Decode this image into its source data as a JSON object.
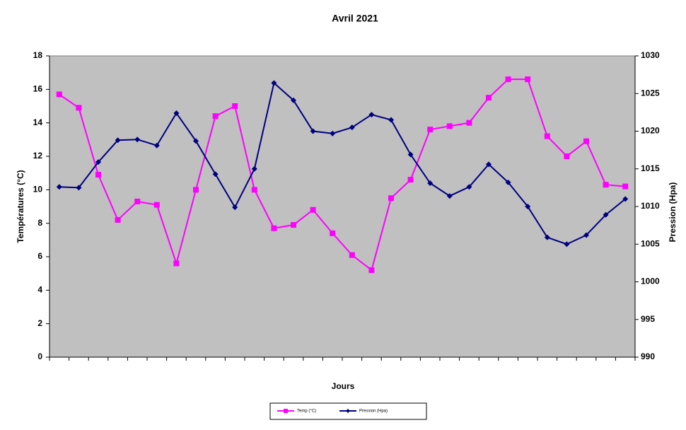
{
  "chart_data": {
    "type": "line",
    "title": "Avril 2021",
    "xlabel": "Jours",
    "ylabel": "Températures (°C)",
    "y2label": "Pression (Hpa)",
    "categories": [
      null,
      null,
      null,
      null,
      null,
      null,
      null,
      null,
      null,
      null,
      null,
      null,
      null,
      null,
      null,
      null,
      null,
      null,
      null,
      null,
      null,
      null,
      null,
      null,
      null,
      null,
      null,
      null,
      null,
      null
    ],
    "series": [
      {
        "name": "Temp (°C)",
        "color": "#ff00ff",
        "marker": "square",
        "values": [
          15.7,
          14.9,
          10.9,
          8.2,
          9.3,
          9.1,
          5.6,
          10.0,
          14.4,
          15.0,
          10.0,
          7.7,
          7.9,
          8.8,
          7.4,
          6.1,
          5.2,
          9.5,
          10.6,
          13.6,
          13.8,
          14.0,
          15.5,
          16.6,
          16.6,
          13.2,
          12.0,
          12.9,
          10.3,
          10.2
        ]
      },
      {
        "name": "Pression (Hpa)",
        "color": "#000080",
        "marker": "diamond",
        "axis": "y2",
        "values": [
          1012.6,
          1012.5,
          1015.9,
          1018.8,
          1018.9,
          1018.1,
          1022.4,
          1018.7,
          1014.3,
          1009.9,
          1015.0,
          1026.4,
          1024.1,
          1020.0,
          1019.7,
          1020.5,
          1022.2,
          1021.5,
          1016.9,
          1013.1,
          1011.4,
          1012.6,
          1015.6,
          1013.2,
          1010.0,
          1005.9,
          1005.0,
          1006.2,
          1008.9,
          1011.0
        ]
      }
    ],
    "ylim": [
      0,
      18
    ],
    "yticks": [
      0,
      2,
      4,
      6,
      8,
      10,
      12,
      14,
      16,
      18
    ],
    "y2lim": [
      990,
      1030
    ],
    "y2ticks": [
      990,
      995,
      1000,
      1005,
      1010,
      1015,
      1020,
      1025,
      1030
    ],
    "plot_background": "#c0c0c0",
    "legend": "bottom"
  }
}
